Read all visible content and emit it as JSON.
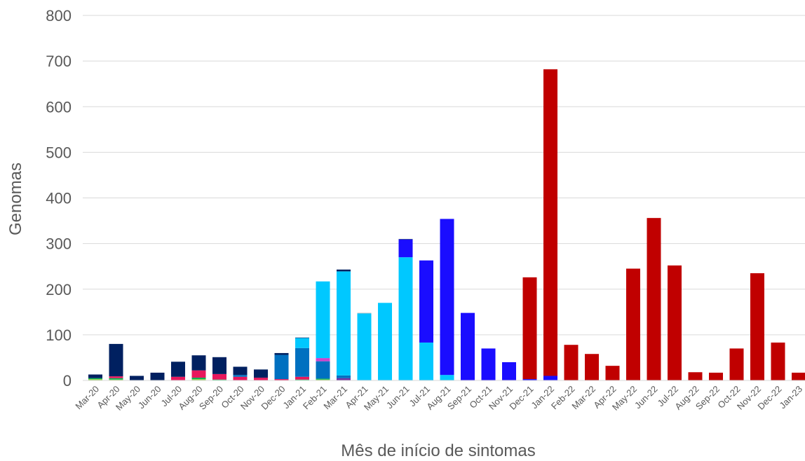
{
  "chart_data": {
    "type": "bar",
    "stacked": true,
    "title": "",
    "xlabel": "Mês de início de sintomas",
    "ylabel": "Genomas",
    "ylim": [
      0,
      800
    ],
    "yticks": [
      0,
      100,
      200,
      300,
      400,
      500,
      600,
      700,
      800
    ],
    "grid": true,
    "legend": "none",
    "categories": [
      "Mar-20",
      "Apr-20",
      "May-20",
      "Jun-20",
      "Jul-20",
      "Aug-20",
      "Sep-20",
      "Oct-20",
      "Nov-20",
      "Dec-20",
      "Jan-21",
      "Feb-21",
      "Mar-21",
      "Apr-21",
      "May-21",
      "Jun-21",
      "Jul-21",
      "Aug-21",
      "Sep-21",
      "Oct-21",
      "Nov-21",
      "Dec-21",
      "Jan-22",
      "Feb-22",
      "Mar-22",
      "Apr-22",
      "May-22",
      "Jun-22",
      "Jul-22",
      "Aug-22",
      "Sep-22",
      "Oct-22",
      "Nov-22",
      "Dec-22",
      "Jan-23"
    ],
    "series": [
      {
        "color": "#92d050",
        "values": [
          3,
          2,
          0,
          0,
          0,
          3,
          1,
          0,
          0,
          0,
          1,
          2,
          0,
          0,
          0,
          0,
          0,
          0,
          0,
          0,
          0,
          0,
          0,
          0,
          0,
          0,
          0,
          0,
          0,
          0,
          0,
          0,
          0,
          0,
          0
        ]
      },
      {
        "color": "#00b050",
        "values": [
          2,
          3,
          0,
          0,
          0,
          3,
          1,
          0,
          0,
          0,
          1,
          2,
          0,
          0,
          0,
          0,
          0,
          0,
          0,
          0,
          0,
          0,
          0,
          0,
          0,
          0,
          0,
          0,
          0,
          0,
          0,
          0,
          0,
          0,
          0
        ]
      },
      {
        "color": "#e8175d",
        "values": [
          0,
          4,
          0,
          0,
          8,
          16,
          12,
          8,
          6,
          3,
          6,
          0,
          0,
          0,
          0,
          0,
          0,
          0,
          0,
          0,
          0,
          0,
          0,
          0,
          0,
          0,
          0,
          0,
          0,
          0,
          0,
          0,
          0,
          0,
          0
        ]
      },
      {
        "color": "#7030a0",
        "values": [
          0,
          0,
          0,
          0,
          0,
          0,
          0,
          0,
          0,
          0,
          0,
          0,
          5,
          0,
          0,
          0,
          0,
          0,
          0,
          0,
          0,
          0,
          0,
          0,
          0,
          0,
          0,
          0,
          0,
          0,
          0,
          0,
          0,
          0,
          0
        ]
      },
      {
        "color": "#0070c0",
        "values": [
          0,
          0,
          0,
          0,
          0,
          0,
          0,
          4,
          0,
          53,
          63,
          38,
          6,
          0,
          0,
          0,
          0,
          0,
          0,
          0,
          0,
          0,
          0,
          0,
          0,
          0,
          0,
          0,
          0,
          0,
          0,
          0,
          0,
          0,
          0
        ]
      },
      {
        "color": "#cc44cc",
        "values": [
          0,
          0,
          0,
          0,
          0,
          0,
          0,
          0,
          0,
          0,
          0,
          7,
          0,
          0,
          0,
          0,
          0,
          0,
          0,
          0,
          0,
          0,
          0,
          0,
          0,
          0,
          0,
          0,
          0,
          0,
          0,
          0,
          0,
          0,
          0
        ]
      },
      {
        "color": "#00c8ff",
        "values": [
          0,
          0,
          0,
          0,
          0,
          0,
          0,
          0,
          0,
          0,
          22,
          168,
          228,
          147,
          170,
          270,
          83,
          12,
          0,
          0,
          0,
          0,
          0,
          0,
          0,
          0,
          0,
          0,
          0,
          0,
          0,
          0,
          0,
          0,
          0
        ]
      },
      {
        "color": "#1a0dff",
        "values": [
          0,
          0,
          0,
          0,
          0,
          0,
          0,
          0,
          0,
          0,
          0,
          0,
          0,
          0,
          0,
          39,
          180,
          342,
          148,
          70,
          40,
          3,
          10,
          0,
          0,
          0,
          0,
          0,
          0,
          0,
          0,
          0,
          0,
          0,
          0
        ]
      },
      {
        "color": "#a5a5a5",
        "values": [
          0,
          0,
          0,
          0,
          0,
          0,
          0,
          0,
          0,
          0,
          0,
          0,
          0,
          1,
          0,
          0,
          0,
          0,
          0,
          0,
          0,
          0,
          0,
          0,
          0,
          0,
          0,
          0,
          0,
          0,
          0,
          0,
          0,
          0,
          0
        ]
      },
      {
        "color": "#002060",
        "values": [
          8,
          71,
          10,
          17,
          33,
          33,
          37,
          18,
          18,
          4,
          1,
          0,
          4,
          0,
          0,
          1,
          0,
          0,
          0,
          0,
          0,
          0,
          0,
          0,
          0,
          0,
          0,
          0,
          0,
          0,
          0,
          0,
          0,
          0,
          0
        ]
      },
      {
        "color": "#c00000",
        "values": [
          0,
          0,
          0,
          0,
          0,
          0,
          0,
          0,
          0,
          0,
          0,
          0,
          0,
          0,
          0,
          0,
          0,
          0,
          0,
          0,
          0,
          223,
          672,
          78,
          58,
          32,
          245,
          356,
          252,
          18,
          17,
          70,
          235,
          83,
          17
        ]
      }
    ]
  }
}
